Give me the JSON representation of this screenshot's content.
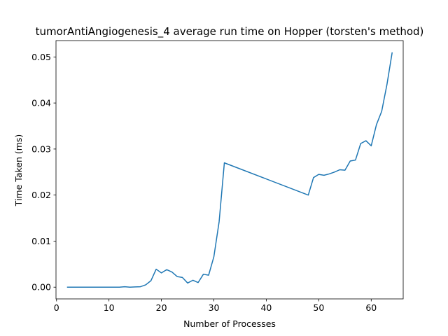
{
  "chart_data": {
    "type": "line",
    "title": "tumorAntiAngiogenesis_4 average run time on Hopper (torsten's method)",
    "xlabel": "Number of Processes",
    "ylabel": "Time Taken (ms)",
    "xlim": [
      -0.1,
      66.1
    ],
    "ylim": [
      -0.00255,
      0.05355
    ],
    "xticks": [
      0,
      10,
      20,
      30,
      40,
      50,
      60
    ],
    "xtick_labels": [
      "0",
      "10",
      "20",
      "30",
      "40",
      "50",
      "60"
    ],
    "yticks": [
      0.0,
      0.01,
      0.02,
      0.03,
      0.04,
      0.05
    ],
    "ytick_labels": [
      "0.00",
      "0.01",
      "0.02",
      "0.03",
      "0.04",
      "0.05"
    ],
    "grid": false,
    "series": [
      {
        "color": "#1f77b4",
        "x": [
          2,
          3,
          4,
          5,
          6,
          7,
          8,
          9,
          10,
          11,
          12,
          13,
          14,
          15,
          16,
          17,
          18,
          19,
          20,
          21,
          22,
          23,
          24,
          25,
          26,
          27,
          28,
          29,
          30,
          31,
          32,
          48,
          49,
          50,
          51,
          52,
          53,
          54,
          55,
          56,
          57,
          58,
          59,
          60,
          61,
          62,
          63,
          64
        ],
        "y": [
          0.0,
          0.0,
          0.0,
          0.0,
          0.0,
          0.0,
          0.0,
          0.0,
          0.0,
          0.0,
          0.0,
          0.0001,
          0.0,
          5e-05,
          0.0001,
          0.0005,
          0.0014,
          0.0039,
          0.0031,
          0.0038,
          0.0033,
          0.0023,
          0.0021,
          0.0009,
          0.0015,
          0.001,
          0.0028,
          0.0026,
          0.0066,
          0.0142,
          0.027,
          0.02,
          0.0238,
          0.0245,
          0.0243,
          0.0246,
          0.025,
          0.0255,
          0.0254,
          0.0274,
          0.0276,
          0.0312,
          0.0318,
          0.0307,
          0.0353,
          0.0382,
          0.044,
          0.051
        ]
      }
    ]
  }
}
